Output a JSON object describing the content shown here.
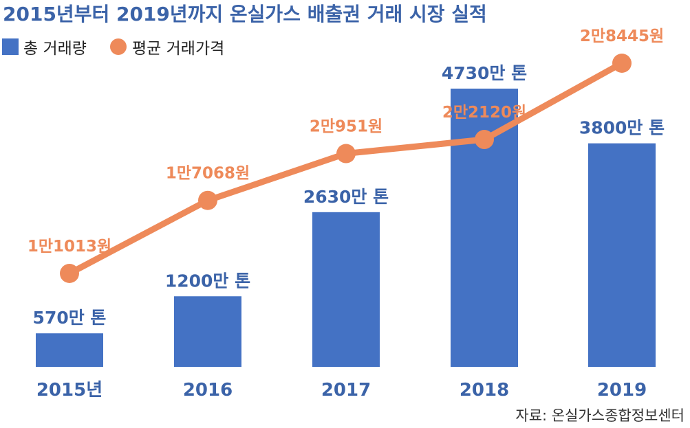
{
  "colors": {
    "bar": "#4472c4",
    "line": "#ee8a5a",
    "title": "#3b63a8",
    "bar_label": "#3b63a8",
    "line_label": "#ee8a5a"
  },
  "chart_data": {
    "type": "bar",
    "title": "2015년부터 2019년까지 온실가스 배출권 거래 시장 실적",
    "categories": [
      "2015년",
      "2016",
      "2017",
      "2018",
      "2019"
    ],
    "series": [
      {
        "name": "총 거래량",
        "type": "bar",
        "values": [
          570,
          1200,
          2630,
          4730,
          3800
        ],
        "labels": [
          "570만 톤",
          "1200만 톤",
          "2630만 톤",
          "4730만 톤",
          "3800만 톤"
        ]
      },
      {
        "name": "평균 거래가격",
        "type": "line",
        "values": [
          11013,
          17068,
          20951,
          22120,
          28445
        ],
        "labels": [
          "1만1013원",
          "1만7068원",
          "2만951원",
          "2만2120원",
          "2만8445원"
        ]
      }
    ],
    "legend_position": "top-left",
    "grid": false,
    "source": "자료: 온실가스종합정보센터"
  }
}
